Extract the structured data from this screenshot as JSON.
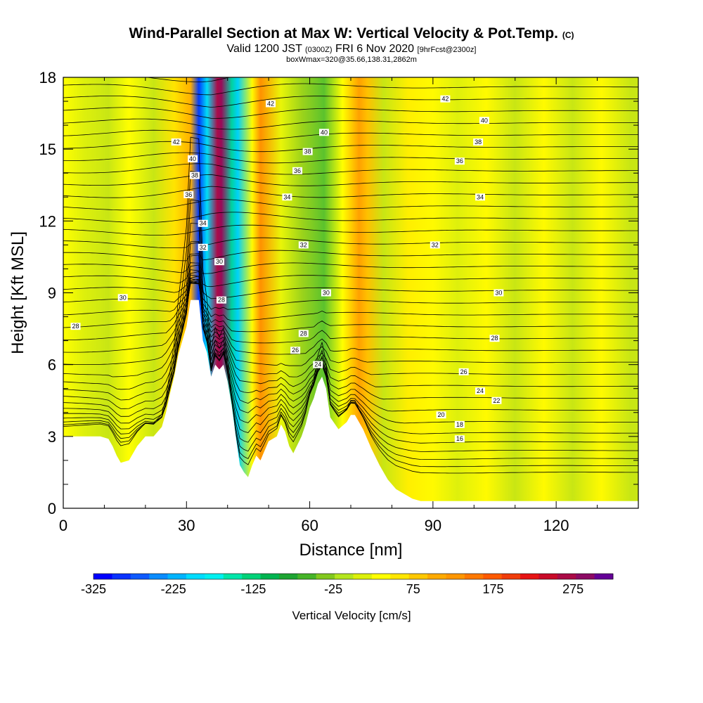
{
  "title": {
    "main": "Wind-Parallel Section at Max W: Vertical Velocity & Pot.Temp.",
    "copyright": "(C)",
    "valid_prefix": "Valid 1200 JST",
    "valid_utc": "(0300Z)",
    "valid_date": "FRI 6 Nov 2020",
    "forecast": "[9hrFcst@2300z]",
    "box_info": "boxWmax=320@35.66,138.31,2862m"
  },
  "chart_data": {
    "type": "heatmap",
    "xlabel": "Distance [nm]",
    "ylabel": "Height [Kft MSL]",
    "xlim": [
      0,
      140
    ],
    "ylim": [
      0,
      18
    ],
    "x_ticks": [
      "0",
      "30",
      "60",
      "90",
      "120"
    ],
    "x_tick_values": [
      0,
      30,
      60,
      90,
      120
    ],
    "y_ticks": [
      "0",
      "3",
      "6",
      "9",
      "12",
      "15",
      "18"
    ],
    "y_tick_values": [
      0,
      3,
      6,
      9,
      12,
      15,
      18
    ],
    "terrain_kft": [
      [
        0,
        3.0
      ],
      [
        3,
        3.0
      ],
      [
        6,
        3.0
      ],
      [
        9,
        3.0
      ],
      [
        11,
        2.9
      ],
      [
        12,
        2.6
      ],
      [
        13,
        2.2
      ],
      [
        14,
        1.9
      ],
      [
        16,
        2.0
      ],
      [
        18,
        2.6
      ],
      [
        20,
        3.0
      ],
      [
        22,
        3.0
      ],
      [
        24,
        3.4
      ],
      [
        25,
        4.0
      ],
      [
        26,
        4.8
      ],
      [
        27,
        5.5
      ],
      [
        28,
        6.4
      ],
      [
        29,
        7.0
      ],
      [
        30,
        7.6
      ],
      [
        31,
        8.7
      ],
      [
        33,
        8.7
      ],
      [
        34,
        7.0
      ],
      [
        35,
        6.5
      ],
      [
        36,
        5.5
      ],
      [
        37,
        6.0
      ],
      [
        38,
        5.8
      ],
      [
        39,
        6.0
      ],
      [
        40,
        5.3
      ],
      [
        41,
        4.3
      ],
      [
        42,
        3.0
      ],
      [
        43,
        1.8
      ],
      [
        44,
        1.5
      ],
      [
        45,
        1.3
      ],
      [
        46,
        1.8
      ],
      [
        47,
        2.2
      ],
      [
        48,
        2.0
      ],
      [
        50,
        2.8
      ],
      [
        52,
        3.0
      ],
      [
        53,
        3.5
      ],
      [
        54,
        3.2
      ],
      [
        55,
        2.6
      ],
      [
        56,
        2.3
      ],
      [
        58,
        3.0
      ],
      [
        59,
        3.5
      ],
      [
        60,
        4.2
      ],
      [
        61,
        4.6
      ],
      [
        62,
        5.2
      ],
      [
        63,
        5.5
      ],
      [
        64,
        5.0
      ],
      [
        65,
        3.8
      ],
      [
        67,
        3.3
      ],
      [
        69,
        3.6
      ],
      [
        70,
        3.9
      ],
      [
        71,
        3.9
      ],
      [
        73,
        3.3
      ],
      [
        75,
        2.5
      ],
      [
        77,
        1.8
      ],
      [
        79,
        1.2
      ],
      [
        81,
        0.8
      ],
      [
        83,
        0.6
      ],
      [
        85,
        0.4
      ],
      [
        87,
        0.3
      ],
      [
        90,
        0.3
      ],
      [
        140,
        0.3
      ]
    ],
    "vertical_velocity_bands": [
      {
        "x": 0,
        "w": 0.55
      },
      {
        "x": 5,
        "w": 0.52
      },
      {
        "x": 11,
        "w": 0.5
      },
      {
        "x": 16,
        "w": 0.55
      },
      {
        "x": 22,
        "w": 0.5
      },
      {
        "x": 27,
        "w": 0.6
      },
      {
        "x": 31,
        "w": 0.68
      },
      {
        "x": 33,
        "w": 0.05
      },
      {
        "x": 35,
        "w": 0.22
      },
      {
        "x": 37.5,
        "w": 0.95
      },
      {
        "x": 38.5,
        "w": 0.98
      },
      {
        "x": 41,
        "w": 0.3
      },
      {
        "x": 42.5,
        "w": 0.2
      },
      {
        "x": 46,
        "w": 0.56
      },
      {
        "x": 48,
        "w": 0.72
      },
      {
        "x": 53,
        "w": 0.53
      },
      {
        "x": 58,
        "w": 0.47
      },
      {
        "x": 63.5,
        "w": 0.42
      },
      {
        "x": 68,
        "w": 0.55
      },
      {
        "x": 72,
        "w": 0.7
      },
      {
        "x": 74,
        "w": 0.66
      },
      {
        "x": 78,
        "w": 0.5
      },
      {
        "x": 84,
        "w": 0.58
      },
      {
        "x": 90,
        "w": 0.56
      },
      {
        "x": 96,
        "w": 0.52
      },
      {
        "x": 103,
        "w": 0.56
      },
      {
        "x": 110,
        "w": 0.5
      },
      {
        "x": 117,
        "w": 0.56
      },
      {
        "x": 124,
        "w": 0.5
      },
      {
        "x": 131,
        "w": 0.56
      },
      {
        "x": 138,
        "w": 0.5
      }
    ],
    "isentrope_labels": [
      {
        "text": "42",
        "x": 27.5,
        "y": 15.3
      },
      {
        "text": "40",
        "x": 31.5,
        "y": 14.6
      },
      {
        "text": "38",
        "x": 32.0,
        "y": 13.9
      },
      {
        "text": "36",
        "x": 30.5,
        "y": 13.1
      },
      {
        "text": "34",
        "x": 34.0,
        "y": 11.9
      },
      {
        "text": "32",
        "x": 34.0,
        "y": 10.9
      },
      {
        "text": "30",
        "x": 38.0,
        "y": 10.3
      },
      {
        "text": "28",
        "x": 38.5,
        "y": 8.7
      },
      {
        "text": "42",
        "x": 50.5,
        "y": 16.9
      },
      {
        "text": "40",
        "x": 63.5,
        "y": 15.7
      },
      {
        "text": "38",
        "x": 59.5,
        "y": 14.9
      },
      {
        "text": "36",
        "x": 57.0,
        "y": 14.1
      },
      {
        "text": "34",
        "x": 54.5,
        "y": 13.0
      },
      {
        "text": "32",
        "x": 58.5,
        "y": 11.0
      },
      {
        "text": "30",
        "x": 64.0,
        "y": 9.0
      },
      {
        "text": "28",
        "x": 58.5,
        "y": 7.3
      },
      {
        "text": "26",
        "x": 56.5,
        "y": 6.6
      },
      {
        "text": "24",
        "x": 62.0,
        "y": 6.0
      },
      {
        "text": "42",
        "x": 93.0,
        "y": 17.1
      },
      {
        "text": "40",
        "x": 102.5,
        "y": 16.2
      },
      {
        "text": "38",
        "x": 101.0,
        "y": 15.3
      },
      {
        "text": "36",
        "x": 96.5,
        "y": 14.5
      },
      {
        "text": "34",
        "x": 101.5,
        "y": 13.0
      },
      {
        "text": "32",
        "x": 90.5,
        "y": 11.0
      },
      {
        "text": "30",
        "x": 106.0,
        "y": 9.0
      },
      {
        "text": "28",
        "x": 105.0,
        "y": 7.1
      },
      {
        "text": "26",
        "x": 97.5,
        "y": 5.7
      },
      {
        "text": "24",
        "x": 101.5,
        "y": 4.9
      },
      {
        "text": "22",
        "x": 105.5,
        "y": 4.5
      },
      {
        "text": "20",
        "x": 92.0,
        "y": 3.9
      },
      {
        "text": "18",
        "x": 96.5,
        "y": 3.5
      },
      {
        "text": "16",
        "x": 96.5,
        "y": 2.9
      },
      {
        "text": "30",
        "x": 14.5,
        "y": 8.8
      },
      {
        "text": "28",
        "x": 3.0,
        "y": 7.6
      }
    ]
  },
  "colorbar": {
    "title": "Vertical Velocity [cm/s]",
    "labels": [
      "-325",
      "-225",
      "-125",
      "-25",
      "75",
      "175",
      "275"
    ],
    "label_values": [
      -325,
      -225,
      -125,
      -25,
      75,
      175,
      275
    ],
    "range": [
      -325,
      325
    ],
    "colors": [
      "#0000ff",
      "#0a32ff",
      "#0f5aff",
      "#0a8cff",
      "#00b4ff",
      "#00dcff",
      "#00f0f0",
      "#00e6aa",
      "#00d278",
      "#00b450",
      "#1ea532",
      "#46b428",
      "#82c81e",
      "#b4e61e",
      "#dcf00a",
      "#ffff00",
      "#ffe600",
      "#ffc800",
      "#ffaa00",
      "#ff9600",
      "#ff7800",
      "#ff5a00",
      "#f03c0a",
      "#e61414",
      "#c80a28",
      "#aa0a46",
      "#8c0a64",
      "#640096"
    ]
  }
}
